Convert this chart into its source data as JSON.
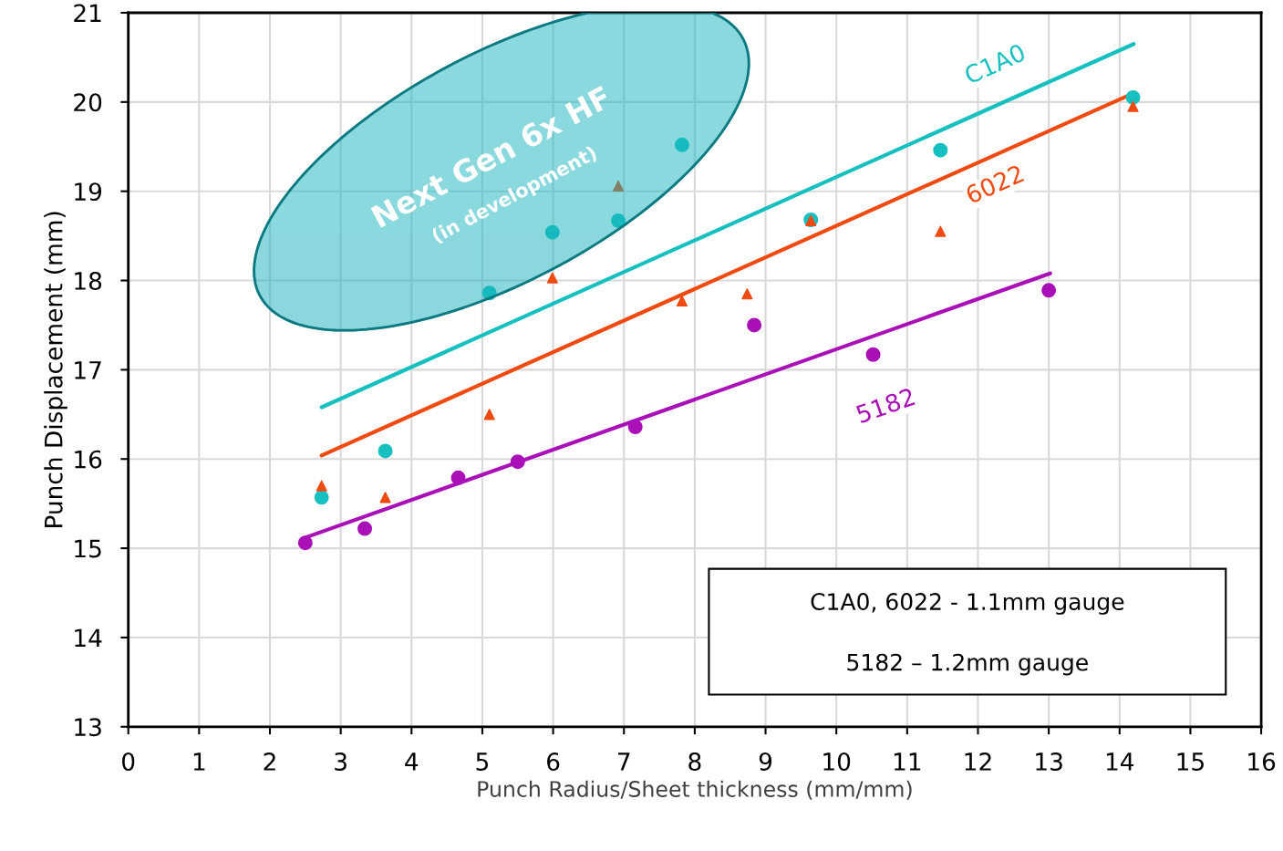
{
  "chart_data": {
    "type": "scatter",
    "xlabel": "Punch Radius/Sheet thickness (mm/mm)",
    "ylabel": "Punch Displacement (mm)",
    "xlim": [
      0,
      16
    ],
    "xticks": [
      0,
      1,
      2,
      3,
      4,
      5,
      6,
      7,
      8,
      9,
      10,
      11,
      12,
      13,
      14,
      15,
      16
    ],
    "ylim": [
      13,
      21
    ],
    "yticks": [
      13,
      14,
      15,
      16,
      17,
      18,
      19,
      20,
      21
    ],
    "grid": true,
    "legend": false,
    "series": [
      {
        "marker": "circle",
        "color": "#17c0c0",
        "x": [
          2.73,
          3.63,
          5.1,
          5.99,
          6.92,
          7.82,
          9.64,
          11.47,
          14.19
        ],
        "values": [
          15.57,
          16.09,
          17.86,
          18.54,
          18.67,
          19.52,
          18.68,
          19.46,
          20.05
        ]
      },
      {
        "marker": "triangle",
        "color": "#f04a10",
        "x": [
          2.73,
          3.63,
          5.1,
          5.99,
          6.92,
          7.82,
          8.74,
          9.64,
          11.47,
          14.19
        ],
        "values": [
          15.7,
          15.57,
          16.5,
          18.03,
          19.06,
          17.77,
          17.85,
          18.67,
          18.55,
          19.95
        ]
      },
      {
        "marker": "circle",
        "color": "#aa10b8",
        "x": [
          2.5,
          3.34,
          4.66,
          5.5,
          7.16,
          8.84,
          10.52,
          13.0
        ],
        "values": [
          15.06,
          15.22,
          15.79,
          15.97,
          16.36,
          17.5,
          17.17,
          17.89
        ]
      },
      {
        "type": "line",
        "name": "C1A0",
        "color": "#17c0c0",
        "x": [
          2.73,
          14.2
        ],
        "values": [
          16.58,
          20.65
        ]
      },
      {
        "type": "line",
        "name": "6022",
        "color": "#f04a10",
        "x": [
          2.73,
          14.2
        ],
        "values": [
          16.04,
          20.1
        ]
      },
      {
        "type": "line",
        "name": "5182",
        "color": "#aa10b8",
        "x": [
          2.5,
          13.02
        ],
        "values": [
          15.12,
          18.08
        ]
      }
    ],
    "annotations": [
      "Next Gen 6x HF",
      "(in development)",
      "C1A0, 6022 - 1.1mm gauge",
      "5182 – 1.2mm gauge"
    ]
  }
}
